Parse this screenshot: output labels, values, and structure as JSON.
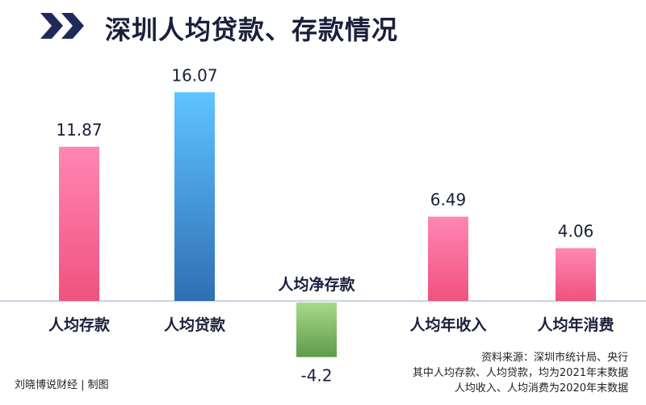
{
  "title": "深圳人均贷款、存款情况",
  "footer": {
    "credit": "刘晓博说财经 | 制图",
    "notes": [
      "资料来源：深圳市统计局、央行",
      "其中人均存款、人均贷款，均为2021年末数据",
      "人均收入、人均消费为2020年末数据"
    ]
  },
  "colors": {
    "title_text": "#1a1f3a",
    "chevron": "#1f2a5c",
    "pink_top": "#ff86b4",
    "pink_bottom": "#f0527e",
    "blue_top": "#5fc4ff",
    "blue_bottom": "#2f6fb4",
    "green_top": "#a8d98a",
    "green_bottom": "#5d9b4a",
    "axis": "#9aa3c0"
  },
  "chart_data": {
    "type": "bar",
    "categories": [
      "人均存款",
      "人均贷款",
      "人均净存款",
      "人均年收入",
      "人均年消费"
    ],
    "values": [
      11.87,
      16.07,
      -4.2,
      6.49,
      4.06
    ],
    "value_labels": [
      "11.87",
      "16.07",
      "-4.2",
      "6.49",
      "4.06"
    ],
    "bar_colors": [
      "pink",
      "blue",
      "green",
      "pink",
      "pink"
    ],
    "title": "深圳人均贷款、存款情况",
    "xlabel": "",
    "ylabel": "",
    "grid": false,
    "legend": "none"
  }
}
